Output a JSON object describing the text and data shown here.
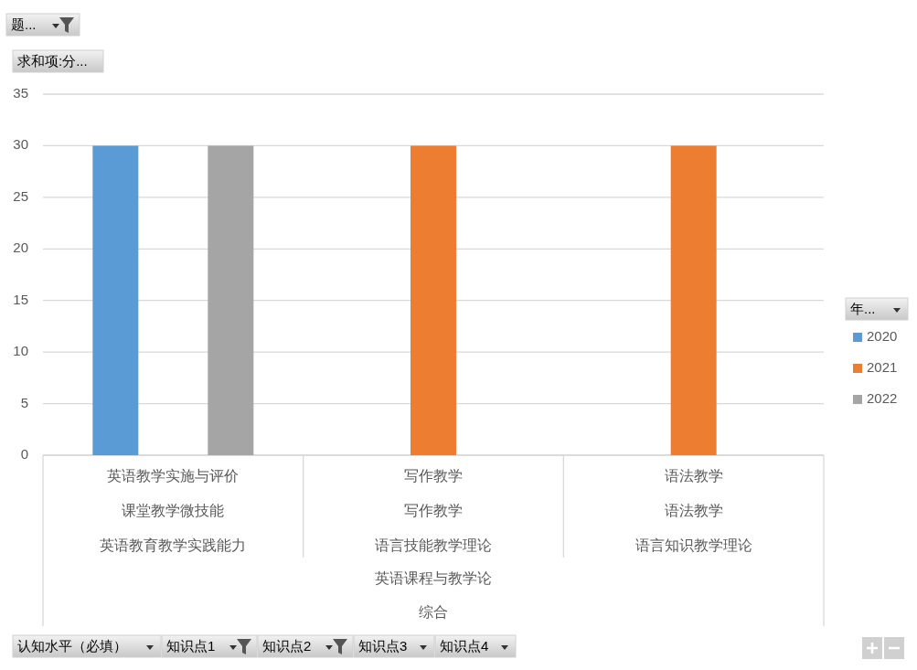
{
  "chart_data": {
    "type": "bar",
    "ylabel": "求和项:分...",
    "legend_title": "年...",
    "legend": "right",
    "grid": "y",
    "categories": [
      "英语教学实施与评价",
      "写作教学",
      "语法教学"
    ],
    "series": [
      {
        "name": "2020",
        "color": "#5b9bd5",
        "values": [
          30,
          null,
          null
        ]
      },
      {
        "name": "2021",
        "color": "#ed7d31",
        "values": [
          null,
          30,
          30
        ]
      },
      {
        "name": "2022",
        "color": "#a5a5a5",
        "values": [
          30,
          null,
          null
        ]
      }
    ],
    "ylim": [
      0,
      35
    ],
    "yticks": [
      0,
      5,
      10,
      15,
      20,
      25,
      30,
      35
    ],
    "annotations": [
      "课堂教学微技能",
      "写作教学",
      "语法教学",
      "英语教育教学实践能力",
      "语言技能教学理论",
      "语言知识教学理论",
      "英语课程与教学论",
      "综合",
      "题...",
      "认知水平（必填）",
      "知识点1",
      "知识点2",
      "知识点3",
      "知识点4"
    ]
  }
}
